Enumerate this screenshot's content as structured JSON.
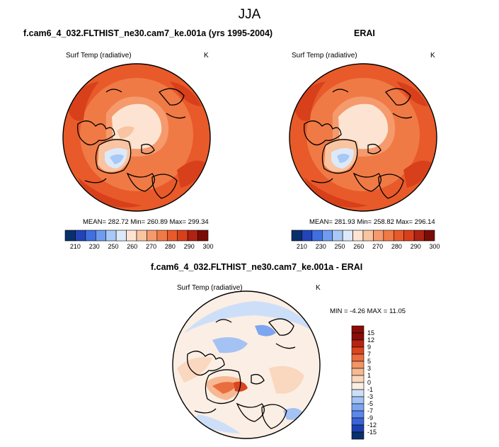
{
  "figure": {
    "title": "JJA"
  },
  "panels": [
    {
      "header": "f.cam6_4_032.FLTHIST_ne30.cam7_ke.001a (yrs 1995-2004)",
      "variable": "Surf Temp (radiative)",
      "units": "K",
      "stats": "MEAN= 282.72  Min= 260.89  Max= 299.34"
    },
    {
      "header": "ERAI",
      "variable": "Surf Temp (radiative)",
      "units": "K",
      "stats": "MEAN= 281.93  Min= 258.82  Max= 296.14"
    },
    {
      "header": "f.cam6_4_032.FLTHIST_ne30.cam7_ke.001a - ERAI",
      "variable": "Surf Temp (radiative)",
      "units": "K",
      "stats": "MIN =  -4.26 MAX =  11.05"
    }
  ],
  "colors": {
    "temp_scale": [
      "#08306b",
      "#2244b8",
      "#3f6fe0",
      "#6d9cf0",
      "#a8c8f5",
      "#dde9f8",
      "#fde4d2",
      "#f9c4a1",
      "#f59a6d",
      "#f07a45",
      "#e85a2a",
      "#d8401c",
      "#b02212",
      "#7a0c08"
    ],
    "diff_scale": [
      "#08306b",
      "#1d3fb0",
      "#3a63d8",
      "#5b86ea",
      "#7ea6f0",
      "#a4c2f4",
      "#cddff8",
      "#fbeee4",
      "#fad7bf",
      "#f6b993",
      "#f29567",
      "#ea6d3f",
      "#d9461f",
      "#b82412",
      "#8a0d08"
    ],
    "land_line": "#000000"
  },
  "chart_data": [
    {
      "type": "heatmap",
      "title": "f.cam6_4_032.FLTHIST_ne30.cam7_ke.001a (yrs 1995-2004)",
      "projection": "north polar stereographic",
      "colorbar_ticks": [
        "210",
        "230",
        "250",
        "260",
        "270",
        "280",
        "290",
        "300"
      ],
      "mean": 282.72,
      "min": 260.89,
      "max": 299.34
    },
    {
      "type": "heatmap",
      "title": "ERAI",
      "projection": "north polar stereographic",
      "colorbar_ticks": [
        "210",
        "230",
        "250",
        "260",
        "270",
        "280",
        "290",
        "300"
      ],
      "mean": 281.93,
      "min": 258.82,
      "max": 296.14
    },
    {
      "type": "heatmap",
      "title": "f.cam6_4_032.FLTHIST_ne30.cam7_ke.001a - ERAI",
      "projection": "north polar stereographic",
      "colorbar_ticks": [
        "15",
        "12",
        "9",
        "7",
        "5",
        "3",
        "1",
        "0",
        "-1",
        "-3",
        "-5",
        "-7",
        "-9",
        "-12",
        "-15"
      ],
      "min": -4.26,
      "max": 11.05
    }
  ]
}
